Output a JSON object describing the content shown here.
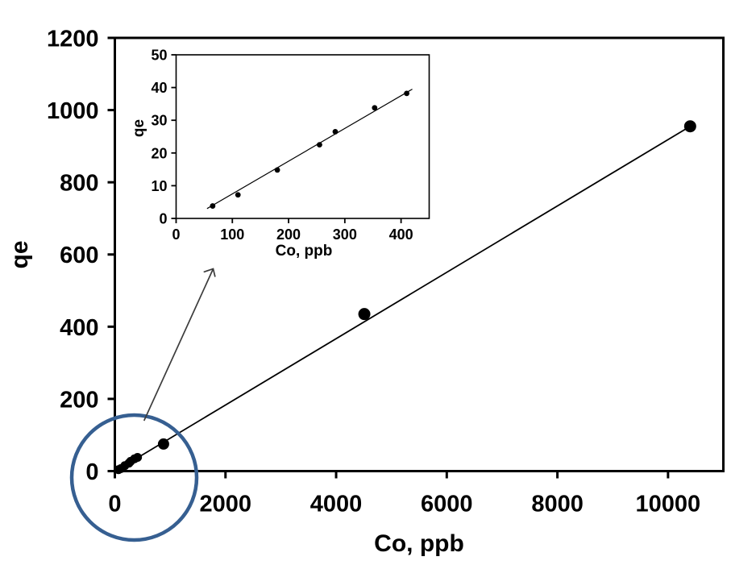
{
  "figure": {
    "background": "#ffffff"
  },
  "chart_data": [
    {
      "id": "main",
      "type": "scatter",
      "title": "",
      "xlabel": "Co, ppb",
      "ylabel": "qe",
      "xlim": [
        0,
        11000
      ],
      "ylim": [
        0,
        1200
      ],
      "xticks": [
        0,
        2000,
        4000,
        6000,
        8000,
        10000
      ],
      "yticks": [
        0,
        200,
        400,
        600,
        800,
        1000,
        1200
      ],
      "grid": false,
      "legend": false,
      "marker_color": "#000000",
      "line_color": "#000000",
      "points": [
        {
          "x": 65,
          "y": 4,
          "r": 5.5
        },
        {
          "x": 110,
          "y": 7,
          "r": 5.5
        },
        {
          "x": 180,
          "y": 15,
          "r": 5.5
        },
        {
          "x": 255,
          "y": 22,
          "r": 5.5
        },
        {
          "x": 285,
          "y": 27,
          "r": 5.5
        },
        {
          "x": 355,
          "y": 34,
          "r": 5.5
        },
        {
          "x": 410,
          "y": 38,
          "r": 5.5
        },
        {
          "x": 880,
          "y": 75,
          "r": 7
        },
        {
          "x": 4510,
          "y": 435,
          "r": 7.5
        },
        {
          "x": 10400,
          "y": 955,
          "r": 7.5
        }
      ],
      "fit_line": [
        [
          30,
          2
        ],
        [
          10400,
          955
        ]
      ]
    },
    {
      "id": "inset",
      "type": "scatter",
      "title": "",
      "xlabel": "Co, ppb",
      "ylabel": "qe",
      "xlim": [
        0,
        450
      ],
      "ylim": [
        0,
        50
      ],
      "xticks": [
        0,
        100,
        200,
        300,
        400
      ],
      "yticks": [
        0,
        10,
        20,
        30,
        40,
        50
      ],
      "grid": false,
      "legend": false,
      "marker_color": "#000000",
      "line_color": "#000000",
      "points": [
        {
          "x": 65,
          "y": 3.8
        },
        {
          "x": 110,
          "y": 7.2
        },
        {
          "x": 180,
          "y": 14.8
        },
        {
          "x": 255,
          "y": 22.5
        },
        {
          "x": 283,
          "y": 26.5
        },
        {
          "x": 353,
          "y": 33.8
        },
        {
          "x": 410,
          "y": 38.2
        }
      ],
      "fit_line": [
        [
          55,
          3
        ],
        [
          420,
          39.5
        ]
      ]
    }
  ],
  "annotations": {
    "highlight_circle": {
      "color": "#365F91"
    },
    "zoom_arrow": {
      "color": "#3C3C3C"
    }
  }
}
